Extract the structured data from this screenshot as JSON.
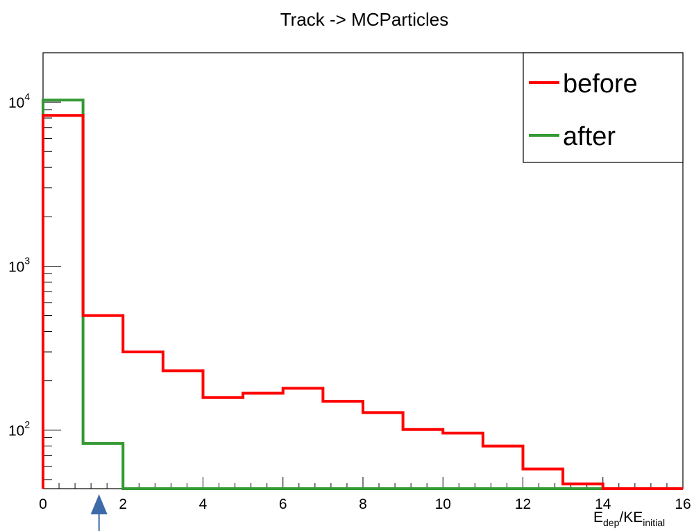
{
  "chart_data": {
    "type": "line",
    "title": "Track -> MCParticles",
    "xlabel": {
      "base": "E",
      "sub1": "dep",
      "mid": "/KE",
      "sub2": "initial"
    },
    "xlim": [
      0,
      16
    ],
    "ylim": [
      44,
      20000
    ],
    "y_scale": "log",
    "grid": false,
    "legend_position": "top-right",
    "x_ticks": [
      "0",
      "2",
      "4",
      "6",
      "8",
      "10",
      "12",
      "14",
      "16"
    ],
    "y_ticks": [
      {
        "base": "10",
        "exp": "2",
        "value": 100
      },
      {
        "base": "10",
        "exp": "3",
        "value": 1000
      },
      {
        "base": "10",
        "exp": "4",
        "value": 10000
      }
    ],
    "bin_edges": [
      0,
      1,
      2,
      3,
      4,
      5,
      6,
      7,
      8,
      9,
      10,
      11,
      12,
      13,
      14,
      15,
      16
    ],
    "series": [
      {
        "name": "before",
        "color": "#ff0000",
        "values": [
          8300,
          500,
          300,
          230,
          158,
          168,
          180,
          150,
          128,
          101,
          96,
          80,
          58,
          47,
          0,
          0
        ]
      },
      {
        "name": "after",
        "color": "#339933",
        "values": [
          10300,
          83,
          0,
          0,
          0,
          0,
          0,
          0,
          0,
          0,
          0,
          0,
          0,
          0,
          0,
          0
        ]
      }
    ],
    "annotation": {
      "type": "arrow",
      "icon": "up-arrow",
      "color": "#3d6aa8",
      "x": 1.4
    }
  }
}
